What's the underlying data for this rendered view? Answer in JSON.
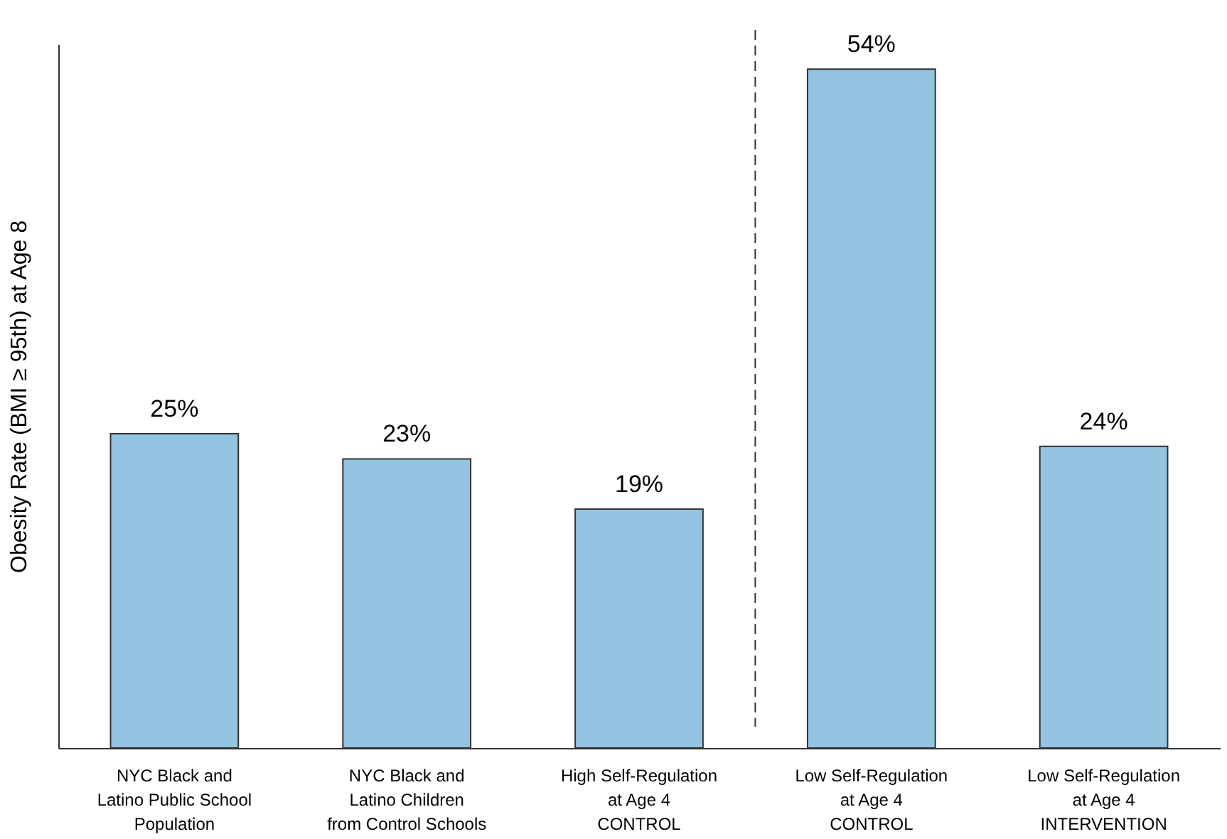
{
  "chart_data": {
    "type": "bar",
    "ylabel": "Obesity Rate (BMI ≥ 95th) at Age 8",
    "categories": [
      "NYC Black and\nLatino Public School\nPopulation",
      "NYC Black and\nLatino Children\nfrom Control Schools",
      "High Self-Regulation\nat Age 4\nCONTROL",
      "Low Self-Regulation\nat Age 4\nCONTROL",
      "Low Self-Regulation\nat Age 4\nINTERVENTION"
    ],
    "values": [
      25,
      23,
      19,
      54,
      24
    ],
    "value_labels": [
      "25%",
      "23%",
      "19%",
      "54%",
      "24%"
    ],
    "color": "#94c4e1",
    "ylim": [
      0,
      56
    ],
    "tick_labels": "x",
    "grid": false
  }
}
